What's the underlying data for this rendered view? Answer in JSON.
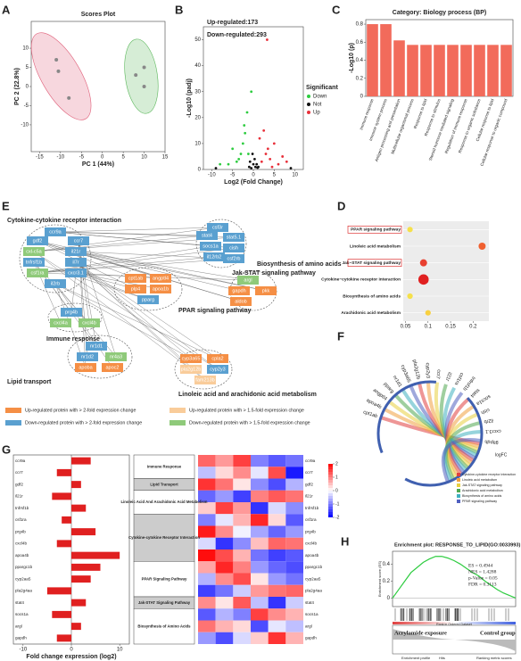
{
  "panels": [
    "A",
    "B",
    "C",
    "D",
    "E",
    "F",
    "G",
    "H"
  ],
  "chart_data": [
    {
      "type": "scatter",
      "title": "Scores Plot",
      "x_label": "PC 1 (44%)",
      "y_label": "PC 2 (22.8%)",
      "xlim": [
        -17,
        15
      ],
      "ylim": [
        -17,
        17
      ],
      "xticks": [
        -15,
        -10,
        -5,
        0,
        5,
        10,
        15
      ],
      "yticks": [
        -10,
        -5,
        0,
        5,
        10
      ],
      "series": [
        {
          "color": "#e0607a",
          "x": [
            -11,
            -10.5,
            -8
          ],
          "values": [
            7,
            4,
            -3
          ]
        },
        {
          "color": "#5cb85c",
          "x": [
            8,
            10,
            10
          ],
          "values": [
            3,
            5,
            0
          ]
        }
      ]
    },
    {
      "type": "scatter",
      "x_label": "Log2 (Fold Change)",
      "y_label": "-Log10 (padj)",
      "annotations": [
        "Up-regulated:173",
        "Down-regulated:293"
      ],
      "legend_title": "Significant",
      "xlim": [
        -12,
        12
      ],
      "ylim": [
        0,
        55
      ],
      "xticks": [
        -10,
        -5,
        0,
        5,
        10
      ],
      "yticks": [
        0,
        10,
        20,
        30,
        40,
        50
      ],
      "series": [
        {
          "name": "Down",
          "color": "#2ecc40",
          "x": [
            -4,
            -3,
            -2.5,
            -2,
            -1.5,
            -6,
            -5,
            -3.5,
            -1.2,
            -2.2,
            -8,
            -0.5
          ],
          "values": [
            3,
            6,
            10,
            14,
            22,
            2,
            8,
            4,
            6,
            17,
            2,
            30
          ]
        },
        {
          "name": "Not",
          "color": "#111111",
          "x": [
            -1,
            -0.5,
            0,
            0.5,
            1,
            -0.8,
            0.3,
            0.8,
            -0.2,
            1.2,
            -9,
            9
          ],
          "values": [
            1,
            0.5,
            2,
            1,
            0.7,
            3,
            4,
            2,
            6,
            1,
            0.5,
            0.5
          ]
        },
        {
          "name": "Up",
          "color": "#e8303a",
          "x": [
            2,
            3,
            4,
            5,
            6,
            2.5,
            3.5,
            7,
            1.5,
            4.5,
            8,
            3.3
          ],
          "values": [
            3,
            6,
            4,
            10,
            2,
            15,
            8,
            5,
            12,
            1,
            3,
            50
          ]
        }
      ]
    },
    {
      "type": "bar",
      "title": "Category: Biology process (BP)",
      "y_label": "-Log10 (p)",
      "color": "#f26b5b",
      "ylim": [
        0,
        0.85
      ],
      "yticks": [
        0,
        0.2,
        0.4,
        0.6,
        0.8
      ],
      "categories": [
        "Immune response",
        "Immune system process",
        "Antigen processing and presentation",
        "Multicellular organismal process",
        "Response to lipid",
        "Response to stimulus",
        "Steroid hormone mediated signaling",
        "Regulation of immune response",
        "Response to organic substance",
        "Cellular response to lipid",
        "Cellular response to organic compound"
      ],
      "values": [
        0.8,
        0.8,
        0.62,
        0.57,
        0.57,
        0.57,
        0.57,
        0.57,
        0.57,
        0.57,
        0.57
      ]
    },
    {
      "type": "bubble",
      "categories": [
        "PPAR signaling pathway",
        "Linoleic acid metabolism",
        "Jak−STAT signaling pathway",
        "Cytokine−cytokine receptor interaction",
        "Biosynthesis of amino acids",
        "Arachidonic acid metabolism"
      ],
      "values": [
        0.06,
        0.22,
        0.09,
        0.09,
        0.06,
        0.1
      ],
      "sizes": [
        2,
        3,
        3,
        5,
        2,
        2
      ],
      "colors": [
        "#f5e04a",
        "#f06030",
        "#e84030",
        "#e02020",
        "#f5e04a",
        "#f8d040"
      ],
      "xlim": [
        0.045,
        0.235
      ],
      "xticks": [
        0.05,
        0.1,
        0.15,
        0.2
      ]
    },
    {
      "type": "barh",
      "x_label": "Fold change expression (log2)",
      "color": "#e02020",
      "xlim": [
        -12,
        12
      ],
      "xticks": [
        -10,
        0,
        10
      ],
      "categories": [
        "ccr9a",
        "ccr7",
        "gdf2",
        "il21r",
        "tnfrsf1b",
        "csf1ra",
        "prg4b",
        "cxcl4b",
        "apoa4b",
        "ppargc1b",
        "cyp2aa5",
        "pla2g4aa",
        "stat4",
        "socs1a",
        "argl",
        "gapdh"
      ],
      "values": [
        4,
        -3,
        2,
        -4,
        3,
        -2,
        5,
        -3,
        10,
        6,
        4,
        -5,
        3,
        -4,
        2,
        -3
      ]
    },
    {
      "type": "heatmap",
      "zlim": [
        -2,
        2
      ],
      "zticks": [
        -2,
        -1,
        0,
        1,
        2
      ],
      "values": [
        [
          1.2,
          0.8,
          1.5,
          -1.0,
          -1.3,
          -1.1
        ],
        [
          -0.5,
          0.3,
          0.9,
          -0.2,
          1.4,
          -1.8
        ],
        [
          1.6,
          1.1,
          0.2,
          -0.9,
          -1.4,
          -0.6
        ],
        [
          -1.2,
          -0.8,
          -1.5,
          1.0,
          1.3,
          1.1
        ],
        [
          0.4,
          1.5,
          0.8,
          -1.6,
          -0.3,
          -0.9
        ],
        [
          -1.0,
          -0.2,
          0.6,
          1.7,
          0.3,
          -1.3
        ],
        [
          1.8,
          0.9,
          -0.1,
          -0.7,
          -1.2,
          -0.8
        ],
        [
          -0.3,
          -1.6,
          -0.9,
          0.5,
          1.2,
          1.1
        ],
        [
          1.9,
          1.4,
          0.6,
          -1.1,
          -1.5,
          -1.3
        ],
        [
          0.7,
          1.7,
          1.0,
          -0.8,
          -1.2,
          -1.4
        ],
        [
          -0.6,
          0.9,
          1.4,
          0.2,
          -0.8,
          -1.1
        ],
        [
          -1.5,
          -1.1,
          -0.4,
          0.8,
          1.1,
          1.2
        ],
        [
          0.9,
          0.2,
          1.3,
          -0.5,
          -1.6,
          -0.4
        ],
        [
          -1.3,
          -0.6,
          -1.0,
          1.5,
          0.9,
          0.6
        ],
        [
          1.1,
          0.6,
          0.3,
          -1.4,
          -0.2,
          -0.5
        ],
        [
          -0.8,
          -1.4,
          -0.3,
          0.4,
          1.6,
          0.6
        ]
      ]
    },
    {
      "type": "line",
      "title": "Enrichment plot: RESPONSE_TO_LIPID(GO:0033993)",
      "y_label": "Enrichment score (ES)",
      "x_label": "Rank in Ordered Dataset",
      "annotations": [
        "ES = 0.4944",
        "NES = 1.4288",
        "p-Value = 0.05",
        "FDR = 0.3113"
      ],
      "group_labels": [
        "Acrylamide exposure",
        "Control group"
      ],
      "legend": [
        "Enrichment profile",
        "Hits",
        "Ranking metric scores"
      ],
      "color": "#2ecc40",
      "xlim": [
        0,
        100
      ],
      "ylim": [
        -0.1,
        0.55
      ],
      "yticks": [
        0,
        0.2,
        0.4
      ],
      "x": [
        0,
        5,
        10,
        15,
        20,
        25,
        30,
        35,
        40,
        45,
        50,
        55,
        60,
        65,
        70,
        75,
        80,
        85,
        90,
        95,
        100
      ],
      "values": [
        0,
        0.1,
        0.2,
        0.3,
        0.36,
        0.42,
        0.46,
        0.49,
        0.49,
        0.47,
        0.44,
        0.4,
        0.35,
        0.3,
        0.26,
        0.2,
        0.15,
        0.1,
        0.06,
        0.03,
        0
      ]
    }
  ],
  "network": {
    "clusters": [
      "Cytokine-cytokine receptor interaction",
      "Jak-STAT signaling pathway",
      "Biosynthesis of amino acids",
      "PPAR signaling pathway",
      "Immune response",
      "Lipid  transport",
      "Linoleic acid and arachidonic acid metabolism"
    ],
    "nodes": [
      "ccr9a",
      "gdf2",
      "ccr7",
      "cxl-c5a",
      "il21r",
      "tnfrsf1b",
      "il7r",
      "csf1ra",
      "cxcr3.1",
      "il2rb",
      "csf3r",
      "stat4",
      "stat5.1",
      "socs1a",
      "cish",
      "il12rb2",
      "csf2rb",
      "argl",
      "gapdh",
      "pkk",
      "aldob",
      "cpt1ab",
      "angptl4",
      "plp4",
      "apoa1b",
      "pparg",
      "prg4b",
      "cxcl4a",
      "cxcl4b",
      "nr1d1",
      "nr1d2",
      "nr4a3",
      "apoba",
      "apoc2",
      "cyp3a65",
      "cpla2",
      "pla2g12b",
      "cyp2y3",
      "fam213b"
    ],
    "legend": [
      "Up-regulated protein with > 2-fold expression change",
      "Up-regulated protein with > 1.5-fold expression change",
      "Down-regulated protein with > 2-fold expression change",
      "Down-regulated protein with > 1.5-fold expression change"
    ]
  },
  "chord": {
    "labels": [
      "cpt1ab",
      "apoa4b",
      "angptl4",
      "pparg",
      "nr1d1",
      "cyp3a65",
      "pla2g12b",
      "cyp2y3",
      "ccr7",
      "il21r",
      "csf1ra",
      "tnfrsf1b",
      "stat4",
      "socs1a",
      "cish",
      "il2rb",
      "cxcr3.1",
      "gapdh"
    ],
    "legend_title": "logFC",
    "legend": [
      "Cytokine-cytokine receptor interaction",
      "Linoleic acid metabolism",
      "Jak-STAT signaling pathway",
      "Arachidonic acid metabolism",
      "Biosynthesis of amino acids",
      "PPAR signaling pathway"
    ]
  },
  "pathways": [
    "Immune Response",
    "Lipid Transport",
    "Linoleic Acid And Arachidonic Acid Metabolism",
    "Cytokine-cytokine Receptor Interaction",
    "PPAR Signaling Pathway",
    "Jak-STAT Signaling Pathway",
    "Biosynthesis of Amino Acids"
  ]
}
